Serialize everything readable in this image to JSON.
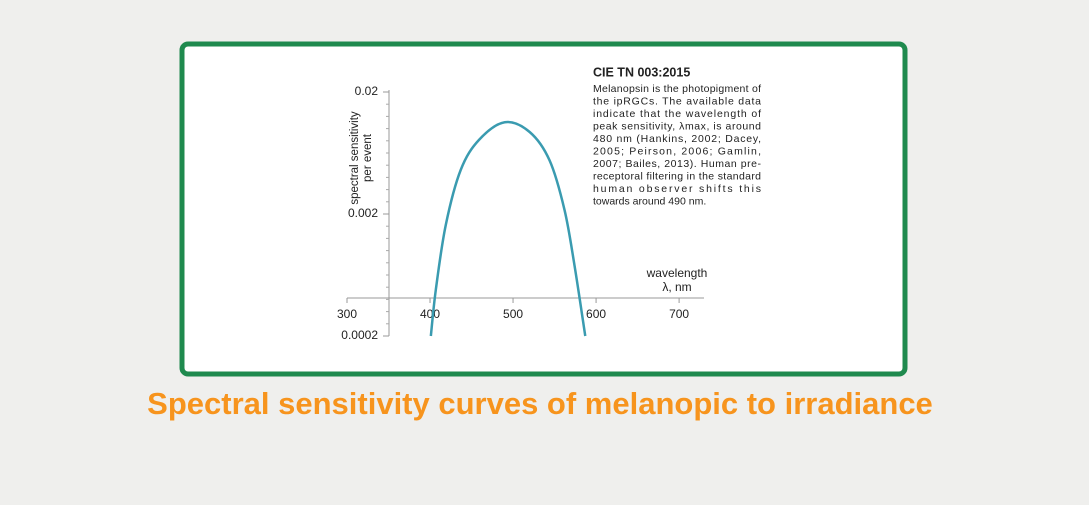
{
  "chart_data": {
    "type": "line",
    "title": "Spectral sensitivity curves of melanopic to irradiance",
    "ylabel": [
      "spectral sensitivity",
      "per event"
    ],
    "xlabel": [
      "wavelength",
      "λ, nm"
    ],
    "x": [
      401,
      407,
      419,
      437,
      459,
      490,
      520,
      544,
      562,
      574,
      587
    ],
    "values": [
      0.0002,
      0.00048,
      0.00163,
      0.0046,
      0.0081,
      0.0113,
      0.0094,
      0.0055,
      0.00216,
      0.00076,
      0.0002
    ],
    "color": "#3a9bb0",
    "xlim": [
      300,
      730
    ],
    "xticks": [
      300,
      400,
      500,
      600,
      700
    ],
    "ylim": [
      0.0002,
      0.02
    ],
    "yticks": [
      0.02,
      0.002,
      0.0002
    ],
    "log_y": true,
    "note": {
      "title": "CIE TN 003:2015",
      "lines": [
        "Melanopsin is the photopigment of",
        "the ipRGCs. The available data",
        "indicate that the wavelength of",
        "peak sensitivity, λmax, is around",
        "480 nm (Hankins, 2002; Dacey,",
        "2005; Peirson, 2006; Gamlin,",
        "2007; Bailes, 2013). Human pre-",
        "receptoral filtering in the standard",
        "human observer shifts this",
        "towards around 490 nm."
      ]
    }
  }
}
